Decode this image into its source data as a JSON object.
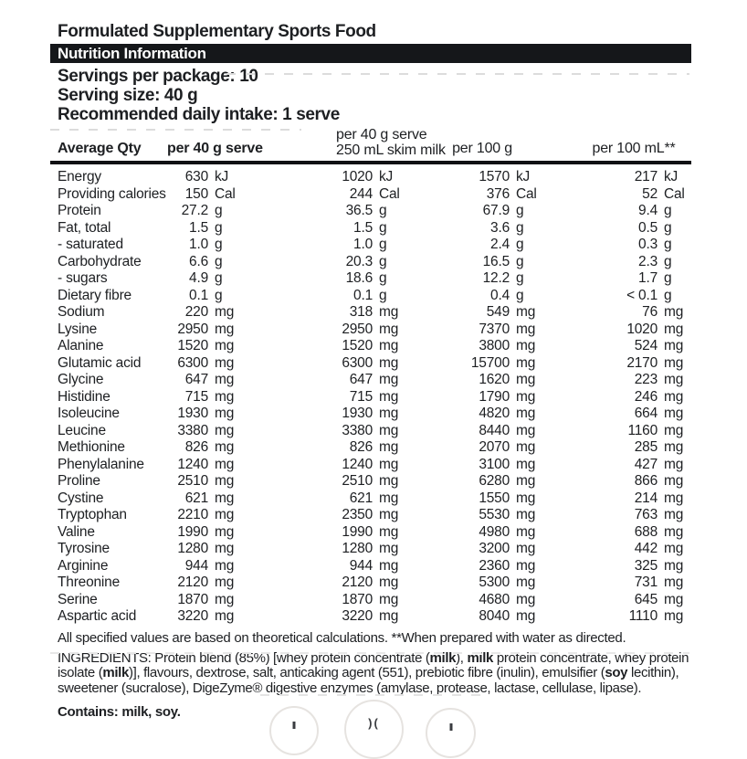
{
  "page": {
    "background_color": "#ffffff",
    "text_color": "#1d1f22",
    "bar_color": "#15171a"
  },
  "header": {
    "title": "Formulated Supplementary Sports Food",
    "bar_title": "Nutrition Information",
    "servings_per_package": "Servings per package: 10",
    "serving_size": "Serving size: 40 g",
    "daily_intake": "Recommended daily intake: 1 serve"
  },
  "table": {
    "header": {
      "col0": "Average Qty",
      "col1": "per 40 g serve",
      "col2_line1": "per 40 g serve",
      "col2_line2": "250 mL skim milk",
      "col3": "per 100 g",
      "col4": "per 100 mL**"
    },
    "rows": [
      {
        "label": "Energy",
        "unit": "kJ",
        "per_40g": "630",
        "per_40g_milk": "1020",
        "per_100g": "1570",
        "per_100mL": "217"
      },
      {
        "label": "Providing calories",
        "unit": "Cal",
        "per_40g": "150",
        "per_40g_milk": "244",
        "per_100g": "376",
        "per_100mL": "52"
      },
      {
        "label": "Protein",
        "unit": "g",
        "per_40g": "27.2",
        "per_40g_milk": "36.5",
        "per_100g": "67.9",
        "per_100mL": "9.4"
      },
      {
        "label": "Fat, total",
        "unit": "g",
        "per_40g": "1.5",
        "per_40g_milk": "1.5",
        "per_100g": "3.6",
        "per_100mL": "0.5"
      },
      {
        "label": "- saturated",
        "unit": "g",
        "per_40g": "1.0",
        "per_40g_milk": "1.0",
        "per_100g": "2.4",
        "per_100mL": "0.3"
      },
      {
        "label": "Carbohydrate",
        "unit": "g",
        "per_40g": "6.6",
        "per_40g_milk": "20.3",
        "per_100g": "16.5",
        "per_100mL": "2.3"
      },
      {
        "label": "- sugars",
        "unit": "g",
        "per_40g": "4.9",
        "per_40g_milk": "18.6",
        "per_100g": "12.2",
        "per_100mL": "1.7"
      },
      {
        "label": "Dietary fibre",
        "unit": "g",
        "per_40g": "0.1",
        "per_40g_milk": "0.1",
        "per_100g": "0.4",
        "per_100mL": "< 0.1"
      },
      {
        "label": "Sodium",
        "unit": "mg",
        "per_40g": "220",
        "per_40g_milk": "318",
        "per_100g": "549",
        "per_100mL": "76"
      },
      {
        "label": "Lysine",
        "unit": "mg",
        "per_40g": "2950",
        "per_40g_milk": "2950",
        "per_100g": "7370",
        "per_100mL": "1020"
      },
      {
        "label": "Alanine",
        "unit": "mg",
        "per_40g": "1520",
        "per_40g_milk": "1520",
        "per_100g": "3800",
        "per_100mL": "524"
      },
      {
        "label": "Glutamic acid",
        "unit": "mg",
        "per_40g": "6300",
        "per_40g_milk": "6300",
        "per_100g": "15700",
        "per_100mL": "2170"
      },
      {
        "label": "Glycine",
        "unit": "mg",
        "per_40g": "647",
        "per_40g_milk": "647",
        "per_100g": "1620",
        "per_100mL": "223"
      },
      {
        "label": "Histidine",
        "unit": "mg",
        "per_40g": "715",
        "per_40g_milk": "715",
        "per_100g": "1790",
        "per_100mL": "246"
      },
      {
        "label": "Isoleucine",
        "unit": "mg",
        "per_40g": "1930",
        "per_40g_milk": "1930",
        "per_100g": "4820",
        "per_100mL": "664"
      },
      {
        "label": "Leucine",
        "unit": "mg",
        "per_40g": "3380",
        "per_40g_milk": "3380",
        "per_100g": "8440",
        "per_100mL": "1160"
      },
      {
        "label": "Methionine",
        "unit": "mg",
        "per_40g": "826",
        "per_40g_milk": "826",
        "per_100g": "2070",
        "per_100mL": "285"
      },
      {
        "label": "Phenylalanine",
        "unit": "mg",
        "per_40g": "1240",
        "per_40g_milk": "1240",
        "per_100g": "3100",
        "per_100mL": "427"
      },
      {
        "label": "Proline",
        "unit": "mg",
        "per_40g": "2510",
        "per_40g_milk": "2510",
        "per_100g": "6280",
        "per_100mL": "866"
      },
      {
        "label": "Cystine",
        "unit": "mg",
        "per_40g": "621",
        "per_40g_milk": "621",
        "per_100g": "1550",
        "per_100mL": "214"
      },
      {
        "label": "Tryptophan",
        "unit": "mg",
        "per_40g": "2210",
        "per_40g_milk": "2350",
        "per_100g": "5530",
        "per_100mL": "763"
      },
      {
        "label": "Valine",
        "unit": "mg",
        "per_40g": "1990",
        "per_40g_milk": "1990",
        "per_100g": "4980",
        "per_100mL": "688"
      },
      {
        "label": "Tyrosine",
        "unit": "mg",
        "per_40g": "1280",
        "per_40g_milk": "1280",
        "per_100g": "3200",
        "per_100mL": "442"
      },
      {
        "label": "Arginine",
        "unit": "mg",
        "per_40g": "944",
        "per_40g_milk": "944",
        "per_100g": "2360",
        "per_100mL": "325"
      },
      {
        "label": "Threonine",
        "unit": "mg",
        "per_40g": "2120",
        "per_40g_milk": "2120",
        "per_100g": "5300",
        "per_100mL": "731"
      },
      {
        "label": "Serine",
        "unit": "mg",
        "per_40g": "1870",
        "per_40g_milk": "1870",
        "per_100g": "4680",
        "per_100mL": "645"
      },
      {
        "label": "Aspartic acid",
        "unit": "mg",
        "per_40g": "3220",
        "per_40g_milk": "3220",
        "per_100g": "8040",
        "per_100mL": "1110"
      }
    ]
  },
  "footnote": "All specified values are based on theoretical calculations. **When prepared with water as directed.",
  "ingredients": {
    "segments": [
      {
        "text": "INGREDIENTS: Protein blend (85%) [whey protein concentrate (",
        "bold": false
      },
      {
        "text": "milk",
        "bold": true
      },
      {
        "text": "), ",
        "bold": false
      },
      {
        "text": "milk",
        "bold": true
      },
      {
        "text": " protein concentrate, whey protein isolate (",
        "bold": false
      },
      {
        "text": "milk",
        "bold": true
      },
      {
        "text": ")], flavours, dextrose, salt, anticaking agent (551), prebiotic fibre (inulin), emulsifier (",
        "bold": false
      },
      {
        "text": "soy",
        "bold": true
      },
      {
        "text": " lecithin), sweetener (sucralose), DigeZyme® digestive enzymes (amylase, protease, lactase, cellulase, lipase).",
        "bold": false
      }
    ]
  },
  "contains": "Contains: milk, soy.",
  "badges": {
    "badge2_glyph": ")(",
    "names": [
      "certification-badge-1",
      "certification-badge-2",
      "certification-badge-3"
    ]
  }
}
